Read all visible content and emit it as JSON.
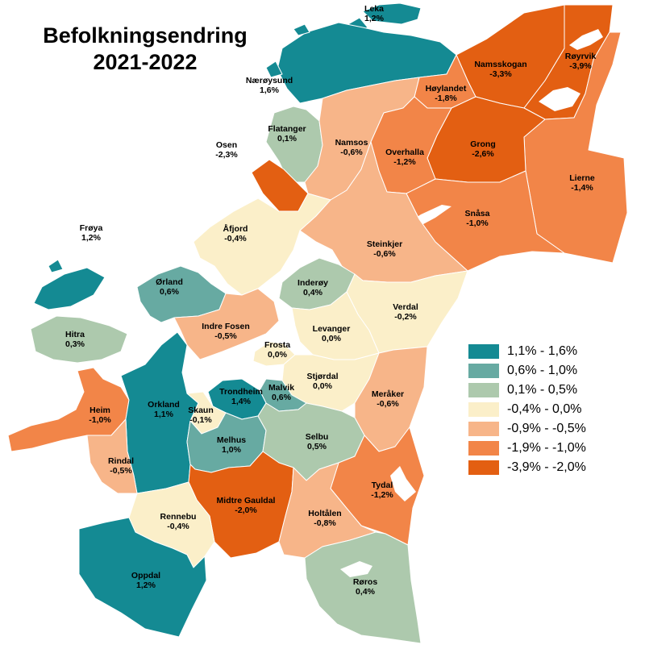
{
  "title_line1": "Befolkningsendring",
  "title_line2": "2021-2022",
  "colors": {
    "c1": "#148a93",
    "c2": "#67aaa2",
    "c3": "#adc9ad",
    "c4": "#fbefc9",
    "c5": "#f7b589",
    "c6": "#f28548",
    "c7": "#e35f12",
    "water": "#ffffff"
  },
  "legend": [
    {
      "label": "1,1% - 1,6%",
      "color": "#148a93"
    },
    {
      "label": "0,6% - 1,0%",
      "color": "#67aaa2"
    },
    {
      "label": "0,1% - 0,5%",
      "color": "#adc9ad"
    },
    {
      "label": "-0,4% - 0,0%",
      "color": "#fbefc9"
    },
    {
      "label": "-0,9% - -0,5%",
      "color": "#f7b589"
    },
    {
      "label": "-1,9% - -1,0%",
      "color": "#f28548"
    },
    {
      "label": "-3,9% - -2,0%",
      "color": "#e35f12"
    }
  ],
  "municipalities": [
    {
      "name": "Leka",
      "value": "1,2%"
    },
    {
      "name": "Nærøysund",
      "value": "1,6%"
    },
    {
      "name": "Namsskogan",
      "value": "-3,3%"
    },
    {
      "name": "Røyrvik",
      "value": "-3,9%"
    },
    {
      "name": "Høylandet",
      "value": "-1,8%"
    },
    {
      "name": "Flatanger",
      "value": "0,1%"
    },
    {
      "name": "Osen",
      "value": "-2,3%"
    },
    {
      "name": "Namsos",
      "value": "-0,6%"
    },
    {
      "name": "Overhalla",
      "value": "-1,2%"
    },
    {
      "name": "Grong",
      "value": "-2,6%"
    },
    {
      "name": "Lierne",
      "value": "-1,4%"
    },
    {
      "name": "Snåsa",
      "value": "-1,0%"
    },
    {
      "name": "Frøya",
      "value": "1,2%"
    },
    {
      "name": "Åfjord",
      "value": "-0,4%"
    },
    {
      "name": "Steinkjer",
      "value": "-0,6%"
    },
    {
      "name": "Ørland",
      "value": "0,6%"
    },
    {
      "name": "Inderøy",
      "value": "0,4%"
    },
    {
      "name": "Verdal",
      "value": "-0,2%"
    },
    {
      "name": "Hitra",
      "value": "0,3%"
    },
    {
      "name": "Indre Fosen",
      "value": "-0,5%"
    },
    {
      "name": "Levanger",
      "value": "0,0%"
    },
    {
      "name": "Frosta",
      "value": "0,0%"
    },
    {
      "name": "Stjørdal",
      "value": "0,0%"
    },
    {
      "name": "Trondheim",
      "value": "1,4%"
    },
    {
      "name": "Malvik",
      "value": "0,6%"
    },
    {
      "name": "Meråker",
      "value": "-0,6%"
    },
    {
      "name": "Heim",
      "value": "-1,0%"
    },
    {
      "name": "Orkland",
      "value": "1,1%"
    },
    {
      "name": "Skaun",
      "value": "-0,1%"
    },
    {
      "name": "Melhus",
      "value": "1,0%"
    },
    {
      "name": "Selbu",
      "value": "0,5%"
    },
    {
      "name": "Rindal",
      "value": "-0,5%"
    },
    {
      "name": "Tydal",
      "value": "-1,2%"
    },
    {
      "name": "Midtre Gauldal",
      "value": "-2,0%"
    },
    {
      "name": "Holtålen",
      "value": "-0,8%"
    },
    {
      "name": "Rennebu",
      "value": "-0,4%"
    },
    {
      "name": "Oppdal",
      "value": "1,2%"
    },
    {
      "name": "Røros",
      "value": "0,4%"
    }
  ]
}
